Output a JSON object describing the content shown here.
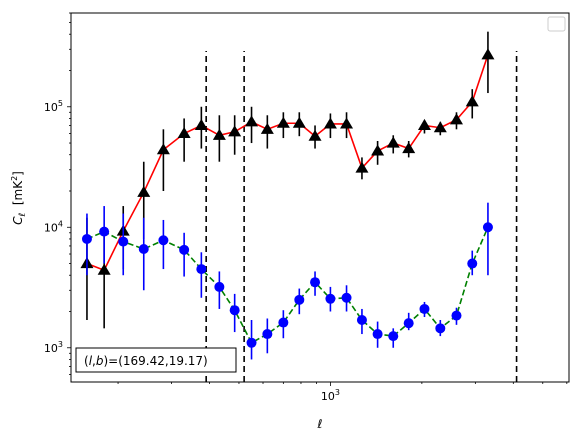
{
  "chart_data": {
    "type": "line",
    "title": "",
    "xlabel": "ℓ",
    "ylabel": "C_ℓ  [mK²]",
    "xscale": "log",
    "yscale": "log",
    "xlim": [
      140,
      6100
    ],
    "ylim": [
      520,
      600000
    ],
    "grid": false,
    "legend": "top-right (empty)",
    "x_tick_labels": [
      {
        "value": 1000,
        "base": "10",
        "exp": "3"
      }
    ],
    "y_tick_labels": [
      {
        "value": 1000,
        "base": "10",
        "exp": "3"
      },
      {
        "value": 10000,
        "base": "10",
        "exp": "4"
      },
      {
        "value": 100000,
        "base": "10",
        "exp": "5"
      }
    ],
    "vertical_lines": [
      {
        "x": 390,
        "ymin": 520,
        "ymax": 290000
      },
      {
        "x": 520,
        "ymin": 520,
        "ymax": 290000
      },
      {
        "x": 4100,
        "ymin": 520,
        "ymax": 290000
      }
    ],
    "annotation": {
      "text": "(l,b)=(169.42,19.17)",
      "position": "bottom-left"
    },
    "series": [
      {
        "line_color": "#ff0000",
        "marker_color": "#000000",
        "marker": "triangle",
        "linestyle": "solid",
        "points": [
          {
            "x": 158,
            "y": 5000,
            "lo": 1700,
            "hi": 12000
          },
          {
            "x": 180,
            "y": 4400,
            "lo": 1450,
            "hi": 10000
          },
          {
            "x": 208,
            "y": 9300,
            "lo": 4500,
            "hi": 15000
          },
          {
            "x": 243,
            "y": 19500,
            "lo": 8000,
            "hi": 35000
          },
          {
            "x": 282,
            "y": 44000,
            "lo": 20000,
            "hi": 65000
          },
          {
            "x": 330,
            "y": 60000,
            "lo": 35000,
            "hi": 80000
          },
          {
            "x": 376,
            "y": 70000,
            "lo": 45000,
            "hi": 100000
          },
          {
            "x": 431,
            "y": 58000,
            "lo": 35000,
            "hi": 85000
          },
          {
            "x": 484,
            "y": 62000,
            "lo": 40000,
            "hi": 85000
          },
          {
            "x": 550,
            "y": 75000,
            "lo": 50000,
            "hi": 100000
          },
          {
            "x": 620,
            "y": 65000,
            "lo": 45000,
            "hi": 85000
          },
          {
            "x": 700,
            "y": 73000,
            "lo": 55000,
            "hi": 90000
          },
          {
            "x": 790,
            "y": 73000,
            "lo": 57000,
            "hi": 90000
          },
          {
            "x": 890,
            "y": 57000,
            "lo": 45000,
            "hi": 70000
          },
          {
            "x": 1000,
            "y": 72000,
            "lo": 55000,
            "hi": 88000
          },
          {
            "x": 1130,
            "y": 72000,
            "lo": 55000,
            "hi": 90000
          },
          {
            "x": 1270,
            "y": 31000,
            "lo": 25000,
            "hi": 38000
          },
          {
            "x": 1430,
            "y": 43000,
            "lo": 33000,
            "hi": 52000
          },
          {
            "x": 1610,
            "y": 50000,
            "lo": 41000,
            "hi": 58000
          },
          {
            "x": 1810,
            "y": 45000,
            "lo": 38000,
            "hi": 52000
          },
          {
            "x": 2040,
            "y": 70000,
            "lo": 60000,
            "hi": 77000
          },
          {
            "x": 2300,
            "y": 67000,
            "lo": 58000,
            "hi": 75000
          },
          {
            "x": 2600,
            "y": 78000,
            "lo": 65000,
            "hi": 90000
          },
          {
            "x": 2930,
            "y": 110000,
            "lo": 80000,
            "hi": 140000
          },
          {
            "x": 3300,
            "y": 270000,
            "lo": 130000,
            "hi": 420000
          }
        ]
      },
      {
        "line_color": "#008000",
        "marker_color": "#0000ff",
        "marker": "circle",
        "linestyle": "dashed",
        "points": [
          {
            "x": 158,
            "y": 8000,
            "lo": 4000,
            "hi": 13000
          },
          {
            "x": 180,
            "y": 9200,
            "lo": 5000,
            "hi": 15000
          },
          {
            "x": 208,
            "y": 7600,
            "lo": 4000,
            "hi": 13000
          },
          {
            "x": 243,
            "y": 6600,
            "lo": 3000,
            "hi": 12000
          },
          {
            "x": 282,
            "y": 7800,
            "lo": 4500,
            "hi": 11500
          },
          {
            "x": 330,
            "y": 6500,
            "lo": 3900,
            "hi": 9000
          },
          {
            "x": 376,
            "y": 4500,
            "lo": 2600,
            "hi": 6200
          },
          {
            "x": 431,
            "y": 3200,
            "lo": 2100,
            "hi": 4300
          },
          {
            "x": 484,
            "y": 2050,
            "lo": 1350,
            "hi": 2800
          },
          {
            "x": 550,
            "y": 1100,
            "lo": 800,
            "hi": 1700
          },
          {
            "x": 620,
            "y": 1300,
            "lo": 900,
            "hi": 1750
          },
          {
            "x": 700,
            "y": 1620,
            "lo": 1200,
            "hi": 2050
          },
          {
            "x": 790,
            "y": 2500,
            "lo": 1900,
            "hi": 3100
          },
          {
            "x": 890,
            "y": 3500,
            "lo": 2700,
            "hi": 4300
          },
          {
            "x": 1000,
            "y": 2550,
            "lo": 2000,
            "hi": 3200
          },
          {
            "x": 1130,
            "y": 2600,
            "lo": 2000,
            "hi": 3300
          },
          {
            "x": 1270,
            "y": 1700,
            "lo": 1300,
            "hi": 2100
          },
          {
            "x": 1430,
            "y": 1300,
            "lo": 1000,
            "hi": 1650
          },
          {
            "x": 1610,
            "y": 1250,
            "lo": 1000,
            "hi": 1450
          },
          {
            "x": 1810,
            "y": 1600,
            "lo": 1400,
            "hi": 1950
          },
          {
            "x": 2040,
            "y": 2100,
            "lo": 1800,
            "hi": 2400
          },
          {
            "x": 2300,
            "y": 1450,
            "lo": 1250,
            "hi": 1700
          },
          {
            "x": 2600,
            "y": 1850,
            "lo": 1550,
            "hi": 2150
          },
          {
            "x": 2930,
            "y": 5000,
            "lo": 4000,
            "hi": 6400
          },
          {
            "x": 3300,
            "y": 10000,
            "lo": 4000,
            "hi": 16000
          }
        ]
      }
    ]
  }
}
